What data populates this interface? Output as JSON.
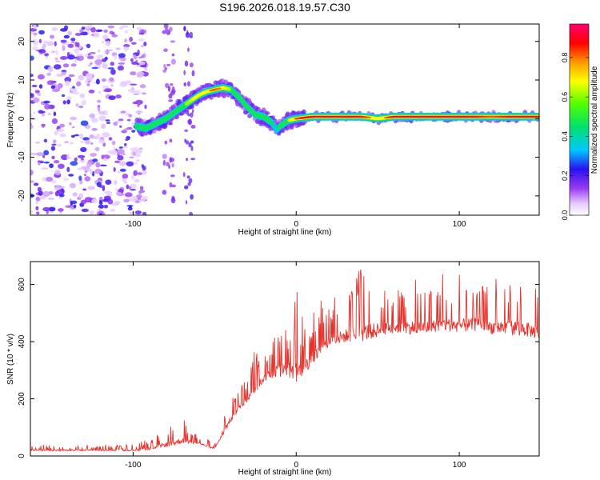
{
  "title": "S196.2026.018.19.57.C30",
  "colors": {
    "snr_line": "#e8322c",
    "axis": "#000000",
    "noise": "#8b3cf0"
  },
  "chart_data": [
    {
      "type": "heatmap",
      "title": "S196.2026.018.19.57.C30",
      "xlabel": "Height of straight line (km)",
      "ylabel": "Frequency (Hz)",
      "xlim": [
        -163,
        149
      ],
      "ylim": [
        -25,
        24.5
      ],
      "xticks": [
        -100,
        0,
        100
      ],
      "yticks": [
        20,
        10,
        0,
        -10,
        -20
      ],
      "colorbar": {
        "label": "Normalized spectral amplitude",
        "range": [
          0,
          0.97
        ],
        "ticks": [
          0.0,
          0.2,
          0.4,
          0.6,
          0.8
        ],
        "colormap": "rainbow (white-purple-blue-cyan-green-yellow-orange-red-pink)"
      },
      "ridge": {
        "description": "frequency ridge of peak spectral amplitude vs height",
        "x": [
          -98,
          -92,
          -85,
          -80,
          -75,
          -70,
          -65,
          -60,
          -55,
          -50,
          -45,
          -40,
          -35,
          -30,
          -25,
          -20,
          -15,
          -12,
          -10,
          -5,
          0,
          10,
          20,
          30,
          40,
          50,
          60,
          70,
          80,
          90,
          100,
          110,
          120,
          130,
          140,
          148
        ],
        "y": [
          -2,
          -2.5,
          -1,
          0,
          1.5,
          3,
          4.5,
          6,
          7,
          7.5,
          8,
          7.5,
          5.5,
          3,
          1,
          0.5,
          -1,
          -3,
          -2,
          -0.5,
          0,
          0.5,
          0.5,
          0.5,
          0.5,
          0,
          0.5,
          0.5,
          0.5,
          0.5,
          0.5,
          0.5,
          0.5,
          0.5,
          0.5,
          0.5
        ],
        "amplitude": [
          0.45,
          0.5,
          0.55,
          0.5,
          0.55,
          0.6,
          0.65,
          0.75,
          0.8,
          0.85,
          0.8,
          0.6,
          0.55,
          0.6,
          0.5,
          0.55,
          0.45,
          0.35,
          0.5,
          0.6,
          0.85,
          0.95,
          0.95,
          0.95,
          0.9,
          0.75,
          0.9,
          0.95,
          0.95,
          0.9,
          0.95,
          0.9,
          0.85,
          0.9,
          0.95,
          0.95
        ]
      },
      "noise_region": {
        "x_range": [
          -163,
          -92
        ],
        "note": "scattered low-amplitude (0.05-0.3) noise across all frequencies"
      }
    },
    {
      "type": "line",
      "xlabel": "Height of straight line (km)",
      "ylabel": "SNR (10 * v/v)",
      "xlim": [
        -163,
        149
      ],
      "ylim": [
        0,
        680
      ],
      "xticks": [
        -100,
        0,
        100
      ],
      "yticks": [
        0,
        200,
        400,
        600
      ],
      "series": [
        {
          "name": "SNR envelope (baseline / spike peaks)",
          "x": [
            -163,
            -130,
            -100,
            -90,
            -80,
            -75,
            -70,
            -65,
            -60,
            -55,
            -50,
            -45,
            -40,
            -35,
            -30,
            -25,
            -20,
            -15,
            -10,
            -5,
            0,
            5,
            10,
            15,
            20,
            30,
            40,
            50,
            60,
            70,
            80,
            90,
            100,
            110,
            120,
            130,
            140,
            149
          ],
          "baseline": [
            20,
            20,
            20,
            25,
            40,
            45,
            55,
            50,
            45,
            35,
            25,
            80,
            130,
            170,
            200,
            240,
            270,
            290,
            300,
            300,
            290,
            310,
            340,
            370,
            400,
            420,
            430,
            440,
            450,
            450,
            450,
            460,
            455,
            460,
            450,
            450,
            445,
            430
          ],
          "peaks": [
            40,
            40,
            40,
            60,
            100,
            120,
            140,
            110,
            70,
            60,
            45,
            160,
            220,
            250,
            300,
            400,
            360,
            430,
            480,
            500,
            600,
            500,
            520,
            560,
            580,
            600,
            680,
            640,
            620,
            640,
            620,
            640,
            640,
            650,
            640,
            660,
            660,
            600
          ]
        }
      ]
    }
  ]
}
